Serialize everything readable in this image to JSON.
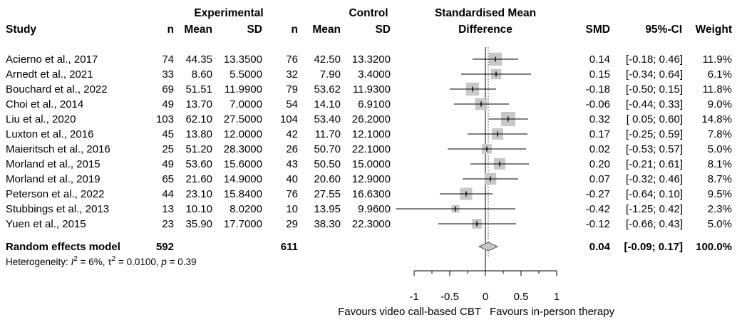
{
  "headers": {
    "study": "Study",
    "experimental": "Experimental",
    "control": "Control",
    "smd_title_1": "Standardised Mean",
    "smd_title_2": "Difference",
    "n": "n",
    "mean": "Mean",
    "sd": "SD",
    "smd": "SMD",
    "ci": "95%-CI",
    "weight": "Weight"
  },
  "chart_data": {
    "type": "forest",
    "x_ticks": [
      -1,
      -0.5,
      0,
      0.5,
      1
    ],
    "x_tick_labels": [
      "-1",
      "-0.5",
      "0",
      "0.5",
      "1"
    ],
    "xlim": [
      -1,
      1
    ],
    "left_label": "Favours video call-based CBT",
    "right_label": "Favours in-person therapy",
    "studies": [
      {
        "study": "Acierno et al., 2017",
        "e_n": "74",
        "e_mean": "44.35",
        "e_sd": "13.3500",
        "c_n": "76",
        "c_mean": "42.50",
        "c_sd": "13.3200",
        "smd": 0.14,
        "lo": -0.18,
        "hi": 0.46,
        "smd_text": "0.14",
        "ci_text": "[-0.18; 0.46]",
        "weight": 11.9,
        "weight_text": "11.9%"
      },
      {
        "study": "Arnedt et al., 2021",
        "e_n": "33",
        "e_mean": "8.60",
        "e_sd": "5.5000",
        "c_n": "32",
        "c_mean": "7.90",
        "c_sd": "3.4000",
        "smd": 0.15,
        "lo": -0.34,
        "hi": 0.64,
        "smd_text": "0.15",
        "ci_text": "[-0.34; 0.64]",
        "weight": 6.1,
        "weight_text": "6.1%"
      },
      {
        "study": "Bouchard et al., 2022",
        "e_n": "69",
        "e_mean": "51.51",
        "e_sd": "11.9900",
        "c_n": "79",
        "c_mean": "53.62",
        "c_sd": "11.9300",
        "smd": -0.18,
        "lo": -0.5,
        "hi": 0.15,
        "smd_text": "-0.18",
        "ci_text": "[-0.50; 0.15]",
        "weight": 11.8,
        "weight_text": "11.8%"
      },
      {
        "study": "Choi et al., 2014",
        "e_n": "49",
        "e_mean": "13.70",
        "e_sd": "7.0000",
        "c_n": "54",
        "c_mean": "14.10",
        "c_sd": "6.9100",
        "smd": -0.06,
        "lo": -0.44,
        "hi": 0.33,
        "smd_text": "-0.06",
        "ci_text": "[-0.44; 0.33]",
        "weight": 9.0,
        "weight_text": "9.0%"
      },
      {
        "study": "Liu et al., 2020",
        "e_n": "103",
        "e_mean": "62.10",
        "e_sd": "27.5000",
        "c_n": "104",
        "c_mean": "53.40",
        "c_sd": "26.2000",
        "smd": 0.32,
        "lo": 0.05,
        "hi": 0.6,
        "smd_text": "0.32",
        "ci_text": "[ 0.05; 0.60]",
        "weight": 14.8,
        "weight_text": "14.8%"
      },
      {
        "study": "Luxton et al., 2016",
        "e_n": "45",
        "e_mean": "13.80",
        "e_sd": "12.0000",
        "c_n": "42",
        "c_mean": "11.70",
        "c_sd": "12.1000",
        "smd": 0.17,
        "lo": -0.25,
        "hi": 0.59,
        "smd_text": "0.17",
        "ci_text": "[-0.25; 0.59]",
        "weight": 7.8,
        "weight_text": "7.8%"
      },
      {
        "study": "Maieritsch et al., 2016",
        "e_n": "25",
        "e_mean": "51.20",
        "e_sd": "28.3000",
        "c_n": "26",
        "c_mean": "50.70",
        "c_sd": "22.1000",
        "smd": 0.02,
        "lo": -0.53,
        "hi": 0.57,
        "smd_text": "0.02",
        "ci_text": "[-0.53; 0.57]",
        "weight": 5.0,
        "weight_text": "5.0%"
      },
      {
        "study": "Morland et al., 2015",
        "e_n": "49",
        "e_mean": "53.60",
        "e_sd": "15.6000",
        "c_n": "43",
        "c_mean": "50.50",
        "c_sd": "15.0000",
        "smd": 0.2,
        "lo": -0.21,
        "hi": 0.61,
        "smd_text": "0.20",
        "ci_text": "[-0.21; 0.61]",
        "weight": 8.1,
        "weight_text": "8.1%"
      },
      {
        "study": "Morland et al., 2019",
        "e_n": "65",
        "e_mean": "21.60",
        "e_sd": "14.9000",
        "c_n": "40",
        "c_mean": "20.60",
        "c_sd": "12.9000",
        "smd": 0.07,
        "lo": -0.32,
        "hi": 0.46,
        "smd_text": "0.07",
        "ci_text": "[-0.32; 0.46]",
        "weight": 8.7,
        "weight_text": "8.7%"
      },
      {
        "study": "Peterson et al., 2022",
        "e_n": "44",
        "e_mean": "23.10",
        "e_sd": "15.8400",
        "c_n": "76",
        "c_mean": "27.55",
        "c_sd": "16.6300",
        "smd": -0.27,
        "lo": -0.64,
        "hi": 0.1,
        "smd_text": "-0.27",
        "ci_text": "[-0.64; 0.10]",
        "weight": 9.5,
        "weight_text": "9.5%"
      },
      {
        "study": "Stubbings et al., 2013",
        "e_n": "13",
        "e_mean": "10.10",
        "e_sd": "8.0200",
        "c_n": "10",
        "c_mean": "13.95",
        "c_sd": "9.9600",
        "smd": -0.42,
        "lo": -1.25,
        "hi": 0.42,
        "smd_text": "-0.42",
        "ci_text": "[-1.25; 0.42]",
        "weight": 2.3,
        "weight_text": "2.3%"
      },
      {
        "study": "Yuen et al., 2015",
        "e_n": "23",
        "e_mean": "35.90",
        "e_sd": "17.7000",
        "c_n": "29",
        "c_mean": "38.30",
        "c_sd": "22.3000",
        "smd": -0.12,
        "lo": -0.66,
        "hi": 0.43,
        "smd_text": "-0.12",
        "ci_text": "[-0.66; 0.43]",
        "weight": 5.0,
        "weight_text": "5.0%"
      }
    ],
    "pooled": {
      "label": "Random effects model",
      "e_n": "592",
      "c_n": "611",
      "smd": 0.04,
      "lo": -0.09,
      "hi": 0.17,
      "smd_text": "0.04",
      "ci_text": "[-0.09; 0.17]",
      "weight_text": "100.0%"
    },
    "heterogeneity": {
      "prefix": "Heterogeneity: ",
      "i2_sym": "I",
      "i2_sup": "2",
      "i2_val": " = 6%, ",
      "tau_sym": "τ",
      "tau_sup": "2",
      "tau_val": " = 0.0100, ",
      "p_sym": "p",
      "p_val": " = 0.39"
    }
  }
}
